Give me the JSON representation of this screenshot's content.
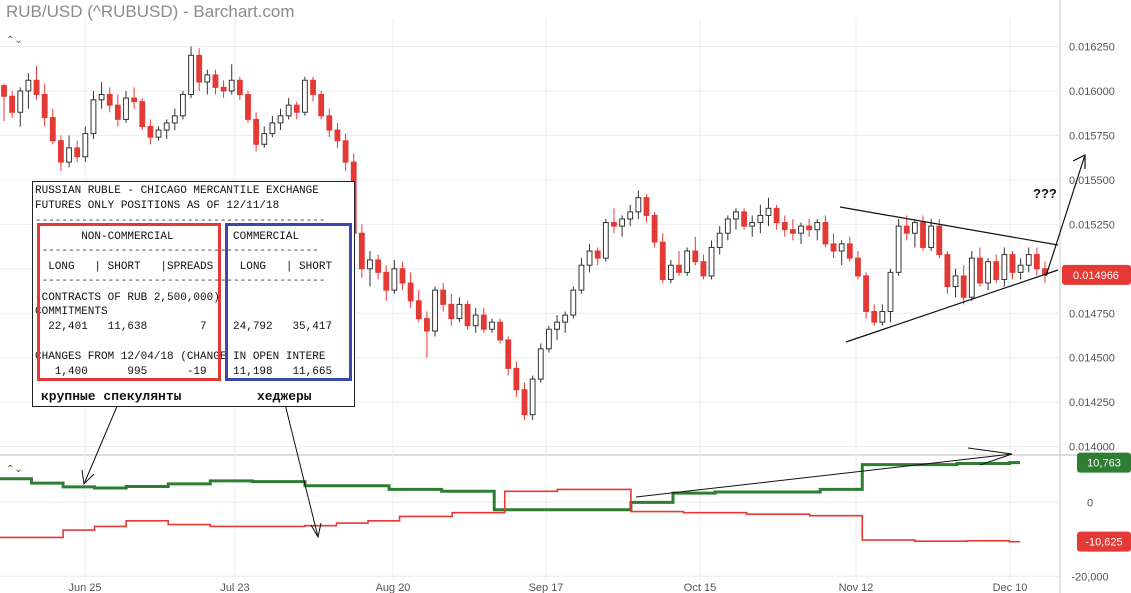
{
  "window": {
    "title": "RUB/USD (^RUBUSD) - Barchart.com"
  },
  "icons": {
    "collapse": "chevron-up-down-icon",
    "collapse_glyph": "⌃⌄"
  },
  "colors": {
    "up": "#222222",
    "down": "#e53935",
    "commercial": "#2e7d32",
    "noncommercial": "#e53935",
    "price_badge": "#e53935",
    "green_badge": "#2e7d32",
    "red_badge": "#e53935"
  },
  "chart_data": [
    {
      "type": "candlestick",
      "title": "RUB/USD (^RUBUSD) - Barchart.com",
      "y_ticks": [
        "0.016250",
        "0.016000",
        "0.015750",
        "0.015500",
        "0.015250",
        "0.015000",
        "0.014750",
        "0.014500",
        "0.014250",
        "0.014000"
      ],
      "y_tick_values": [
        0.01625,
        0.016,
        0.01575,
        0.0155,
        0.01525,
        0.015,
        0.01475,
        0.0145,
        0.01425,
        0.014
      ],
      "ylim": [
        0.01397,
        0.01641
      ],
      "last_price": {
        "value": 0.014966,
        "label": "0.014966"
      },
      "x_ticks": [
        "Jun 25",
        "Jul 23",
        "Aug 20",
        "Sep 17",
        "Oct 15",
        "Nov 12",
        "Dec 10"
      ],
      "candles": [
        [
          0.01603,
          0.01604,
          0.01583,
          0.01597
        ],
        [
          0.01597,
          0.016,
          0.01585,
          0.01588
        ],
        [
          0.01588,
          0.01602,
          0.0158,
          0.016
        ],
        [
          0.016,
          0.0161,
          0.0159,
          0.01606
        ],
        [
          0.01606,
          0.01614,
          0.01595,
          0.01598
        ],
        [
          0.01598,
          0.01604,
          0.0158,
          0.01585
        ],
        [
          0.01585,
          0.0159,
          0.0157,
          0.01572
        ],
        [
          0.01572,
          0.01575,
          0.01555,
          0.0156
        ],
        [
          0.0156,
          0.01575,
          0.01557,
          0.01568
        ],
        [
          0.01568,
          0.01572,
          0.0156,
          0.01563
        ],
        [
          0.01563,
          0.0158,
          0.0156,
          0.01576
        ],
        [
          0.01576,
          0.016,
          0.01573,
          0.01595
        ],
        [
          0.01595,
          0.01605,
          0.0159,
          0.01598
        ],
        [
          0.01598,
          0.01602,
          0.01588,
          0.01592
        ],
        [
          0.01592,
          0.01598,
          0.0158,
          0.01584
        ],
        [
          0.01584,
          0.016,
          0.01582,
          0.01596
        ],
        [
          0.01596,
          0.01602,
          0.0159,
          0.01594
        ],
        [
          0.01594,
          0.01596,
          0.01578,
          0.0158
        ],
        [
          0.0158,
          0.01584,
          0.0157,
          0.01574
        ],
        [
          0.01574,
          0.0158,
          0.01572,
          0.01578
        ],
        [
          0.01578,
          0.01584,
          0.01573,
          0.01582
        ],
        [
          0.01582,
          0.0159,
          0.01578,
          0.01586
        ],
        [
          0.01586,
          0.016,
          0.01584,
          0.01598
        ],
        [
          0.01598,
          0.01625,
          0.01596,
          0.0162
        ],
        [
          0.0162,
          0.01624,
          0.016,
          0.01605
        ],
        [
          0.01605,
          0.01612,
          0.01598,
          0.01609
        ],
        [
          0.01609,
          0.01612,
          0.01598,
          0.01602
        ],
        [
          0.01602,
          0.01606,
          0.01596,
          0.016
        ],
        [
          0.016,
          0.01615,
          0.01598,
          0.01606
        ],
        [
          0.01606,
          0.01608,
          0.01595,
          0.01598
        ],
        [
          0.01598,
          0.016,
          0.01582,
          0.01584
        ],
        [
          0.01584,
          0.01588,
          0.01566,
          0.0157
        ],
        [
          0.0157,
          0.0158,
          0.01568,
          0.01576
        ],
        [
          0.01576,
          0.01586,
          0.01574,
          0.01582
        ],
        [
          0.01582,
          0.0159,
          0.01578,
          0.01586
        ],
        [
          0.01586,
          0.01596,
          0.01584,
          0.01592
        ],
        [
          0.01592,
          0.01594,
          0.01584,
          0.01588
        ],
        [
          0.01588,
          0.01608,
          0.01586,
          0.01606
        ],
        [
          0.01606,
          0.01608,
          0.01594,
          0.01598
        ],
        [
          0.01598,
          0.016,
          0.01584,
          0.01586
        ],
        [
          0.01586,
          0.0159,
          0.01574,
          0.01578
        ],
        [
          0.01578,
          0.01582,
          0.01568,
          0.01572
        ],
        [
          0.01572,
          0.01576,
          0.01555,
          0.0156
        ],
        [
          0.0156,
          0.01565,
          0.0152,
          0.0152
        ],
        [
          0.0152,
          0.01525,
          0.01495,
          0.015
        ],
        [
          0.015,
          0.0151,
          0.0149,
          0.01505
        ],
        [
          0.01505,
          0.01508,
          0.01494,
          0.01498
        ],
        [
          0.01498,
          0.01502,
          0.01482,
          0.01488
        ],
        [
          0.01488,
          0.01505,
          0.01486,
          0.015
        ],
        [
          0.015,
          0.01504,
          0.01488,
          0.01492
        ],
        [
          0.01492,
          0.01498,
          0.01478,
          0.01482
        ],
        [
          0.01482,
          0.01488,
          0.0147,
          0.01472
        ],
        [
          0.01472,
          0.01476,
          0.0145,
          0.01465
        ],
        [
          0.01465,
          0.0149,
          0.01462,
          0.01488
        ],
        [
          0.01488,
          0.01492,
          0.01476,
          0.0148
        ],
        [
          0.0148,
          0.01486,
          0.01468,
          0.01472
        ],
        [
          0.01472,
          0.01484,
          0.0147,
          0.0148
        ],
        [
          0.0148,
          0.01482,
          0.01466,
          0.01468
        ],
        [
          0.01468,
          0.01478,
          0.01464,
          0.01474
        ],
        [
          0.01474,
          0.01478,
          0.01464,
          0.01466
        ],
        [
          0.01466,
          0.01472,
          0.01464,
          0.0147
        ],
        [
          0.0147,
          0.01472,
          0.01458,
          0.0146
        ],
        [
          0.0146,
          0.01462,
          0.0144,
          0.01444
        ],
        [
          0.01444,
          0.01448,
          0.01428,
          0.01432
        ],
        [
          0.01432,
          0.01436,
          0.01415,
          0.01418
        ],
        [
          0.01418,
          0.0144,
          0.01415,
          0.01438
        ],
        [
          0.01438,
          0.01458,
          0.01436,
          0.01455
        ],
        [
          0.01455,
          0.01468,
          0.01453,
          0.01466
        ],
        [
          0.01466,
          0.01474,
          0.0146,
          0.0147
        ],
        [
          0.0147,
          0.01476,
          0.01464,
          0.01474
        ],
        [
          0.01474,
          0.0149,
          0.01472,
          0.01488
        ],
        [
          0.01488,
          0.01506,
          0.01486,
          0.01502
        ],
        [
          0.01502,
          0.01514,
          0.01498,
          0.0151
        ],
        [
          0.0151,
          0.01512,
          0.01502,
          0.01506
        ],
        [
          0.01506,
          0.01528,
          0.01504,
          0.01526
        ],
        [
          0.01526,
          0.01534,
          0.0152,
          0.01524
        ],
        [
          0.01524,
          0.0153,
          0.01518,
          0.01528
        ],
        [
          0.01528,
          0.01536,
          0.01524,
          0.01532
        ],
        [
          0.01532,
          0.01544,
          0.01528,
          0.0154
        ],
        [
          0.0154,
          0.01542,
          0.01526,
          0.0153
        ],
        [
          0.0153,
          0.01532,
          0.01512,
          0.01515
        ],
        [
          0.01515,
          0.0152,
          0.01492,
          0.01494
        ],
        [
          0.01494,
          0.01505,
          0.01492,
          0.01502
        ],
        [
          0.01502,
          0.0151,
          0.01496,
          0.01498
        ],
        [
          0.01498,
          0.01512,
          0.01496,
          0.0151
        ],
        [
          0.0151,
          0.01518,
          0.01502,
          0.01504
        ],
        [
          0.01504,
          0.01508,
          0.01494,
          0.01496
        ],
        [
          0.01496,
          0.01516,
          0.01494,
          0.01512
        ],
        [
          0.01512,
          0.01524,
          0.01508,
          0.0152
        ],
        [
          0.0152,
          0.0153,
          0.01516,
          0.01528
        ],
        [
          0.01528,
          0.01534,
          0.01522,
          0.01532
        ],
        [
          0.01532,
          0.01534,
          0.01522,
          0.01524
        ],
        [
          0.01524,
          0.0153,
          0.01518,
          0.01526
        ],
        [
          0.01526,
          0.01536,
          0.0152,
          0.0153
        ],
        [
          0.0153,
          0.0154,
          0.01524,
          0.01534
        ],
        [
          0.01534,
          0.01536,
          0.01522,
          0.01526
        ],
        [
          0.01526,
          0.0153,
          0.01518,
          0.01522
        ],
        [
          0.01522,
          0.01528,
          0.01516,
          0.0152
        ],
        [
          0.0152,
          0.01526,
          0.01514,
          0.01524
        ],
        [
          0.01524,
          0.01528,
          0.01518,
          0.01522
        ],
        [
          0.01522,
          0.01528,
          0.01516,
          0.01526
        ],
        [
          0.01526,
          0.0153,
          0.01512,
          0.01514
        ],
        [
          0.01514,
          0.0152,
          0.01506,
          0.0151
        ],
        [
          0.0151,
          0.01516,
          0.01502,
          0.01514
        ],
        [
          0.01514,
          0.01518,
          0.01504,
          0.01506
        ],
        [
          0.01506,
          0.0151,
          0.01494,
          0.01496
        ],
        [
          0.01496,
          0.01498,
          0.01472,
          0.01476
        ],
        [
          0.01476,
          0.0148,
          0.01468,
          0.0147
        ],
        [
          0.0147,
          0.0148,
          0.01468,
          0.01476
        ],
        [
          0.01476,
          0.015,
          0.0147,
          0.01498
        ],
        [
          0.01498,
          0.01528,
          0.01496,
          0.01524
        ],
        [
          0.01524,
          0.0153,
          0.01516,
          0.0152
        ],
        [
          0.0152,
          0.01528,
          0.01512,
          0.01526
        ],
        [
          0.01526,
          0.0153,
          0.0151,
          0.01512
        ],
        [
          0.01512,
          0.01528,
          0.0151,
          0.01524
        ],
        [
          0.01524,
          0.01528,
          0.01506,
          0.01508
        ],
        [
          0.01508,
          0.0151,
          0.01486,
          0.0149
        ],
        [
          0.0149,
          0.015,
          0.01484,
          0.01496
        ],
        [
          0.01496,
          0.01502,
          0.0148,
          0.01484
        ],
        [
          0.01484,
          0.0151,
          0.01482,
          0.01506
        ],
        [
          0.01506,
          0.01512,
          0.0149,
          0.01492
        ],
        [
          0.01492,
          0.01506,
          0.01488,
          0.01504
        ],
        [
          0.01504,
          0.01508,
          0.01492,
          0.01494
        ],
        [
          0.01494,
          0.01512,
          0.0149,
          0.01508
        ],
        [
          0.01508,
          0.0151,
          0.01494,
          0.01498
        ],
        [
          0.01498,
          0.01506,
          0.01494,
          0.01502
        ],
        [
          0.01502,
          0.01512,
          0.01498,
          0.01508
        ],
        [
          0.01508,
          0.01512,
          0.01496,
          0.015
        ],
        [
          0.015,
          0.01504,
          0.01492,
          0.01497
        ]
      ]
    },
    {
      "type": "line",
      "title": "COT positions (step)",
      "y_ticks": [
        "0",
        "-20,000"
      ],
      "y_tick_values": [
        0,
        -20000
      ],
      "ylim": [
        -21000,
        12000
      ],
      "series": [
        {
          "color": "#2e7d32",
          "last_label": "10,763",
          "values": [
            6400,
            6400,
            6400,
            5200,
            5200,
            5200,
            4200,
            4200,
            4200,
            3900,
            3900,
            3900,
            4300,
            4300,
            4300,
            4300,
            5000,
            5000,
            5000,
            5000,
            5800,
            5800,
            5800,
            5800,
            5600,
            5600,
            5600,
            5600,
            5600,
            4500,
            4500,
            4500,
            4500,
            4500,
            4500,
            4500,
            4500,
            3500,
            3500,
            3500,
            3500,
            3500,
            3000,
            3000,
            3000,
            3000,
            3000,
            -2000,
            -2000,
            -2000,
            -2000,
            -2000,
            -2000,
            -2000,
            -2000,
            -2000,
            -2000,
            -2000,
            -2000,
            -2000,
            0,
            0,
            0,
            0,
            2500,
            2500,
            2500,
            2500,
            2800,
            2800,
            2800,
            2800,
            2800,
            2800,
            2800,
            2800,
            2800,
            2800,
            3500,
            3500,
            3500,
            3500,
            10200,
            10200,
            10200,
            10200,
            10200,
            10200,
            10200,
            10200,
            10200,
            10500,
            10500,
            10500,
            10500,
            10500,
            10763,
            10763
          ]
        },
        {
          "color": "#e53935",
          "last_label": "-10,625",
          "values": [
            -9500,
            -9500,
            -9500,
            -9500,
            -9500,
            -9500,
            -7500,
            -7500,
            -7500,
            -6500,
            -6500,
            -6500,
            -5000,
            -5000,
            -5000,
            -5000,
            -6000,
            -6000,
            -6000,
            -6000,
            -6500,
            -6500,
            -6500,
            -6500,
            -6500,
            -6500,
            -6500,
            -6500,
            -6500,
            -6300,
            -6300,
            -6300,
            -5600,
            -5600,
            -5600,
            -5000,
            -5000,
            -5000,
            -3800,
            -3800,
            -3800,
            -3800,
            -3800,
            -2800,
            -2800,
            -2800,
            -2800,
            -2800,
            3000,
            3000,
            3000,
            3000,
            3000,
            3500,
            3500,
            3500,
            3500,
            3500,
            3500,
            3500,
            -2500,
            -2500,
            -2500,
            -2500,
            -2500,
            -2800,
            -2800,
            -2800,
            -2800,
            -2800,
            -2800,
            -3200,
            -3200,
            -3200,
            -3200,
            -3200,
            -3200,
            -3600,
            -3600,
            -3600,
            -3600,
            -3600,
            -10200,
            -10200,
            -10200,
            -10200,
            -10200,
            -10500,
            -10500,
            -10500,
            -10500,
            -10500,
            -10400,
            -10400,
            -10400,
            -10400,
            -10625,
            -10625
          ]
        }
      ]
    }
  ],
  "cot": {
    "line1": "RUSSIAN RUBLE - CHICAGO MERCANTILE EXCHANGE",
    "line2": "FUTURES ONLY POSITIONS AS OF 12/11/18",
    "dash1": "--------------------------------------------",
    "line3": "       NON-COMMERCIAL         COMMERCIAL",
    "dash2": "-------------------------------------------",
    "line4": "  LONG   | SHORT   |SPREADS    LONG   | SHORT",
    "dash3": "--------------------------------------------",
    "line5": "(CONTRACTS OF RUB 2,500,000)",
    "line6": "COMMITMENTS",
    "line7": "  22,401   11,638        7    24,792   35,417",
    "line8": "CHANGES FROM 12/04/18 (CHANGE IN OPEN INTERE",
    "line9": "   1,400      995      -19    11,198   11,665"
  },
  "annotations": {
    "speculators": "крупные спекулянты",
    "hedgers": "хеджеры",
    "question": "???"
  }
}
